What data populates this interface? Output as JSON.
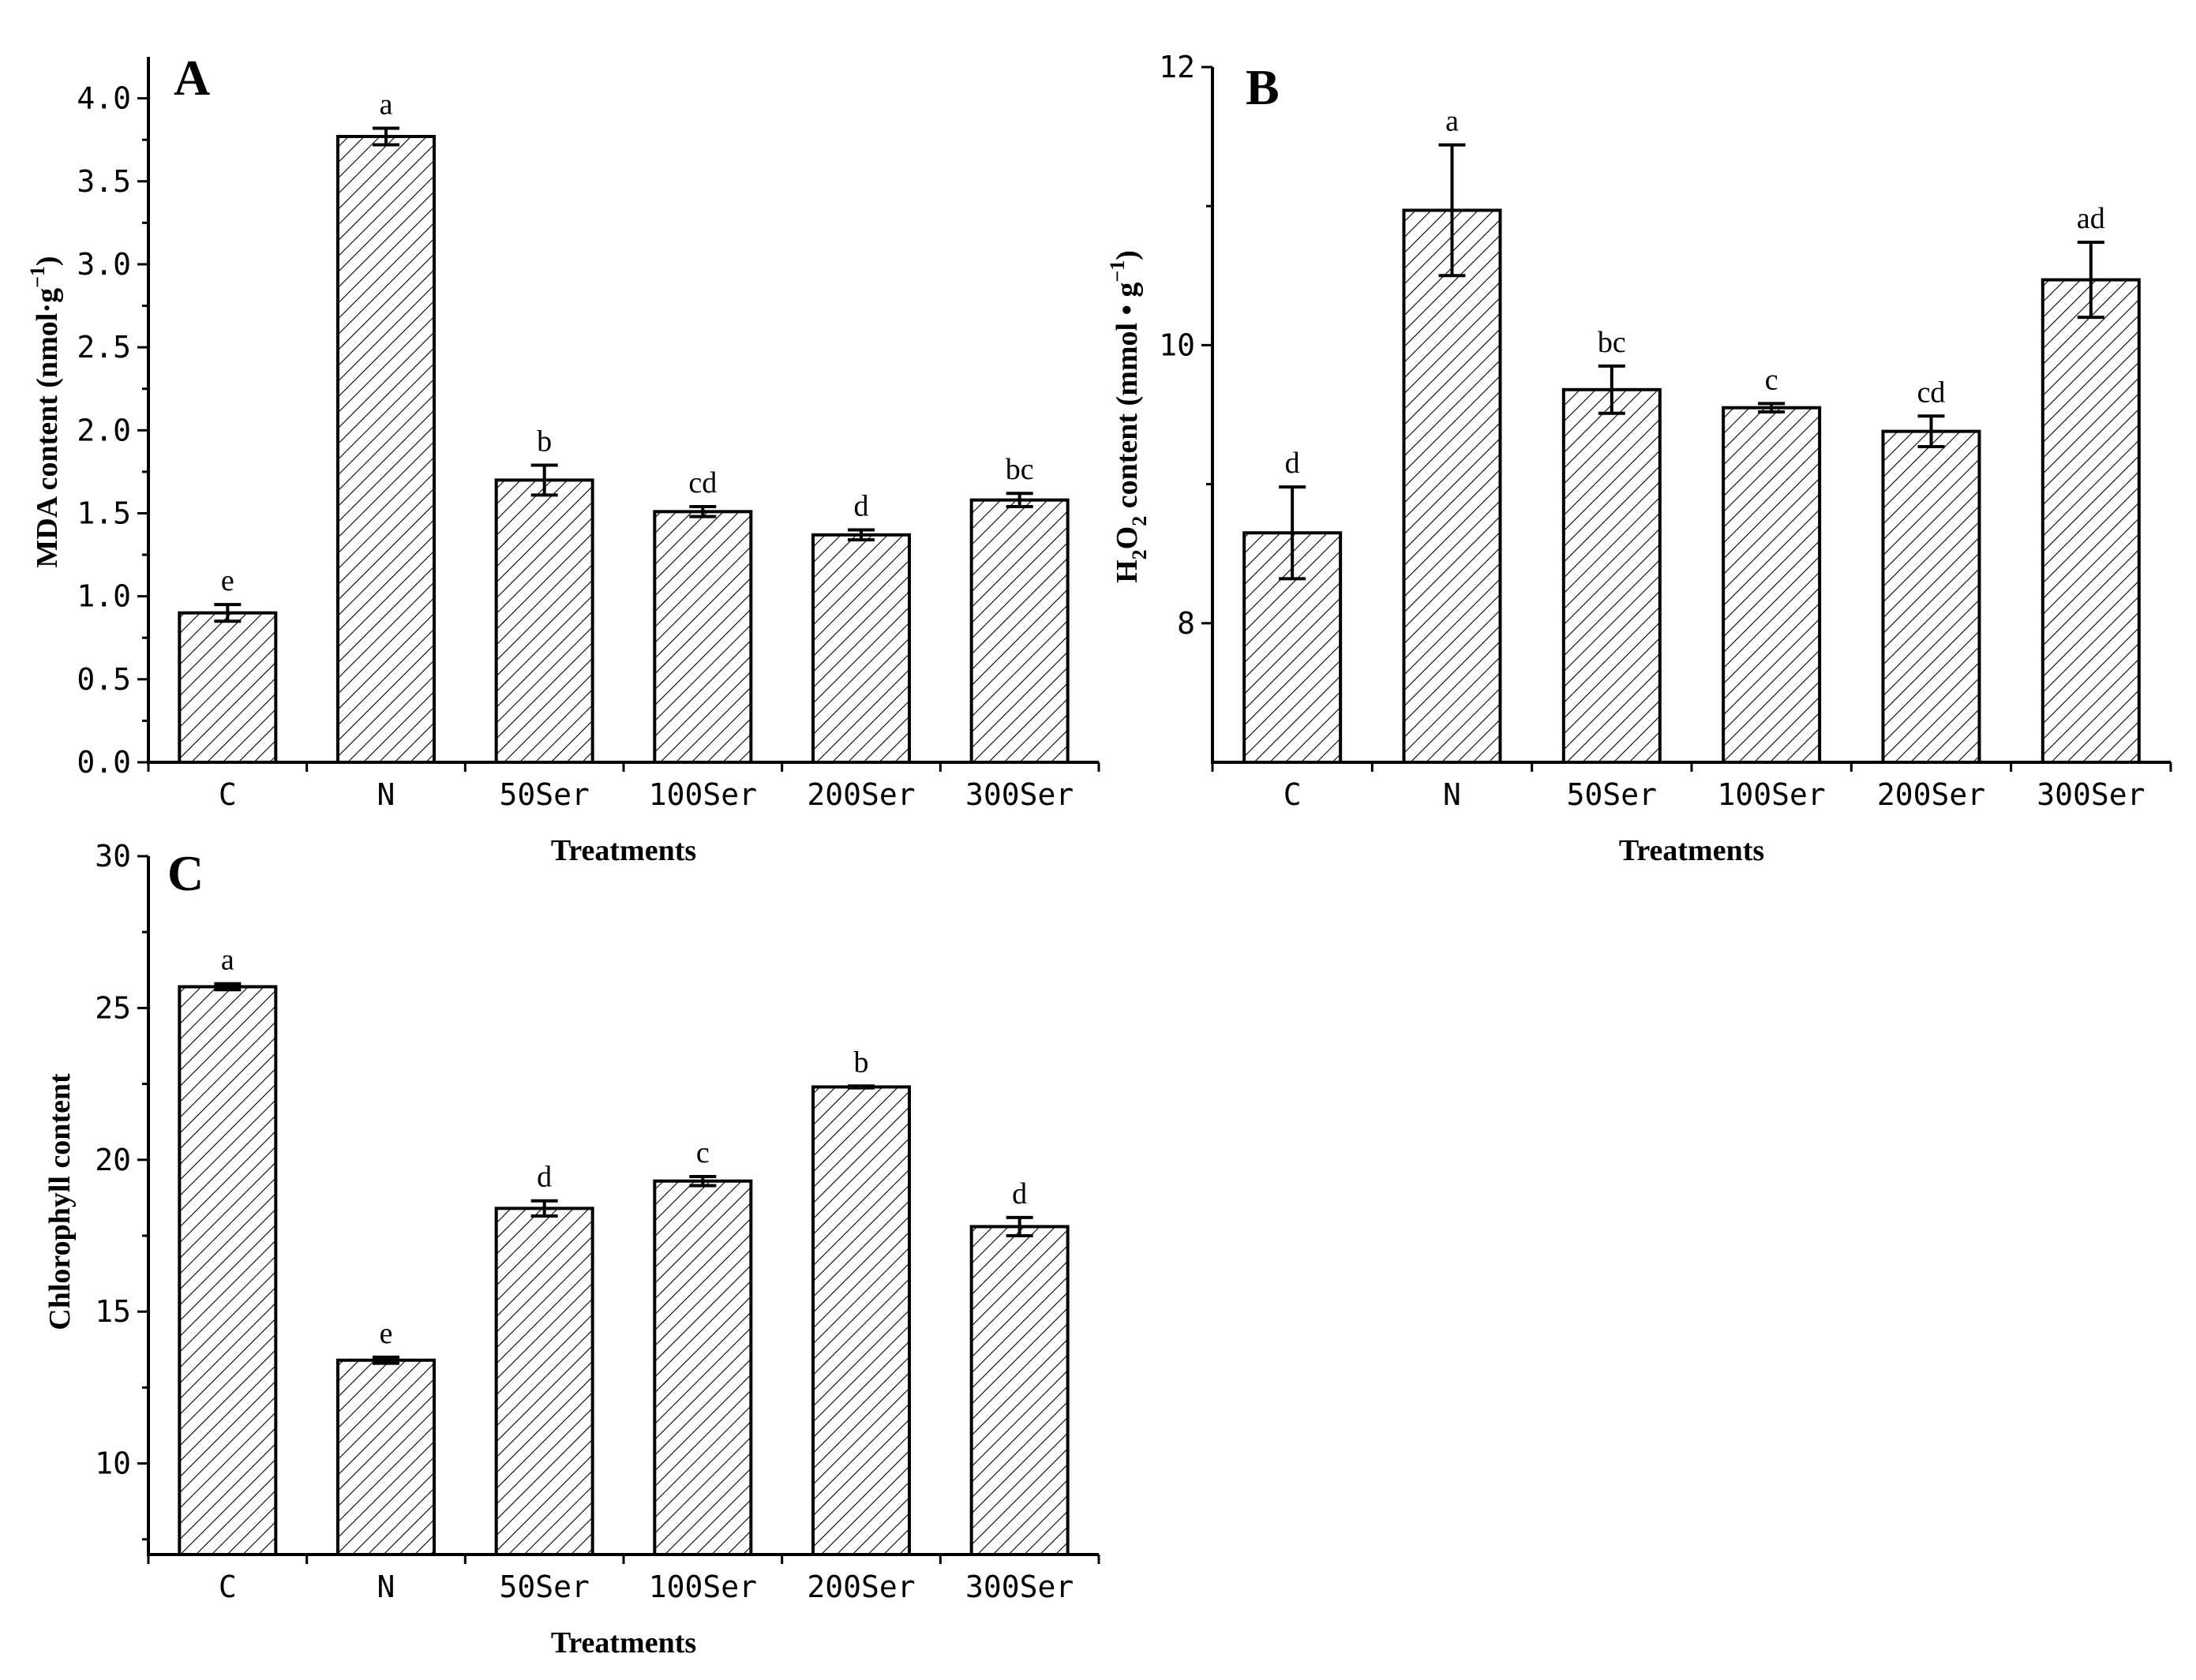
{
  "chart_data": [
    {
      "panel": "A",
      "type": "bar",
      "categories": [
        "C",
        "N",
        "50Ser",
        "100Ser",
        "200Ser",
        "300Ser"
      ],
      "values": [
        0.9,
        3.77,
        1.7,
        1.51,
        1.37,
        1.58
      ],
      "errors": [
        0.05,
        0.05,
        0.09,
        0.03,
        0.03,
        0.04
      ],
      "significance": [
        "e",
        "a",
        "b",
        "cd",
        "d",
        "bc"
      ],
      "xlabel": "Treatments",
      "ylabel": "MDA content (nmol·g",
      "ylabel_sup": "−1",
      "ylabel_tail": ")",
      "ylim": [
        0,
        4.25
      ],
      "yticks": [
        0.0,
        0.5,
        1.0,
        1.5,
        2.0,
        2.5,
        3.0,
        3.5,
        4.0
      ],
      "ytick_labels": [
        "0.0",
        "0.5",
        "1.0",
        "1.5",
        "2.0",
        "2.5",
        "3.0",
        "3.5",
        "4.0"
      ]
    },
    {
      "panel": "B",
      "type": "bar",
      "categories": [
        "C",
        "N",
        "50Ser",
        "100Ser",
        "200Ser",
        "300Ser"
      ],
      "values": [
        8.65,
        10.97,
        9.68,
        9.55,
        9.38,
        10.47
      ],
      "errors": [
        0.33,
        0.47,
        0.17,
        0.03,
        0.11,
        0.27
      ],
      "significance": [
        "d",
        "a",
        "bc",
        "c",
        "cd",
        "ad"
      ],
      "xlabel": "Treatments",
      "ylabel_parts": [
        "H",
        "2",
        "O",
        "2",
        "  content (mmol • g",
        "−1",
        ")"
      ],
      "ylim": [
        7,
        12
      ],
      "yticks": [
        8,
        10,
        12
      ],
      "ytick_labels": [
        "8",
        "10",
        "12"
      ]
    },
    {
      "panel": "C",
      "type": "bar",
      "categories": [
        "C",
        "N",
        "50Ser",
        "100Ser",
        "200Ser",
        "300Ser"
      ],
      "values": [
        25.7,
        13.4,
        18.4,
        19.3,
        22.4,
        17.8
      ],
      "errors": [
        0.1,
        0.1,
        0.25,
        0.15,
        0.03,
        0.3
      ],
      "significance": [
        "a",
        "e",
        "d",
        "c",
        "b",
        "d"
      ],
      "xlabel": "Treatments",
      "ylabel": "Chlorophyll content",
      "ylim": [
        7,
        30
      ],
      "yticks": [
        10,
        15,
        20,
        25,
        30
      ],
      "ytick_labels": [
        "10",
        "15",
        "20",
        "25",
        "30"
      ]
    }
  ]
}
